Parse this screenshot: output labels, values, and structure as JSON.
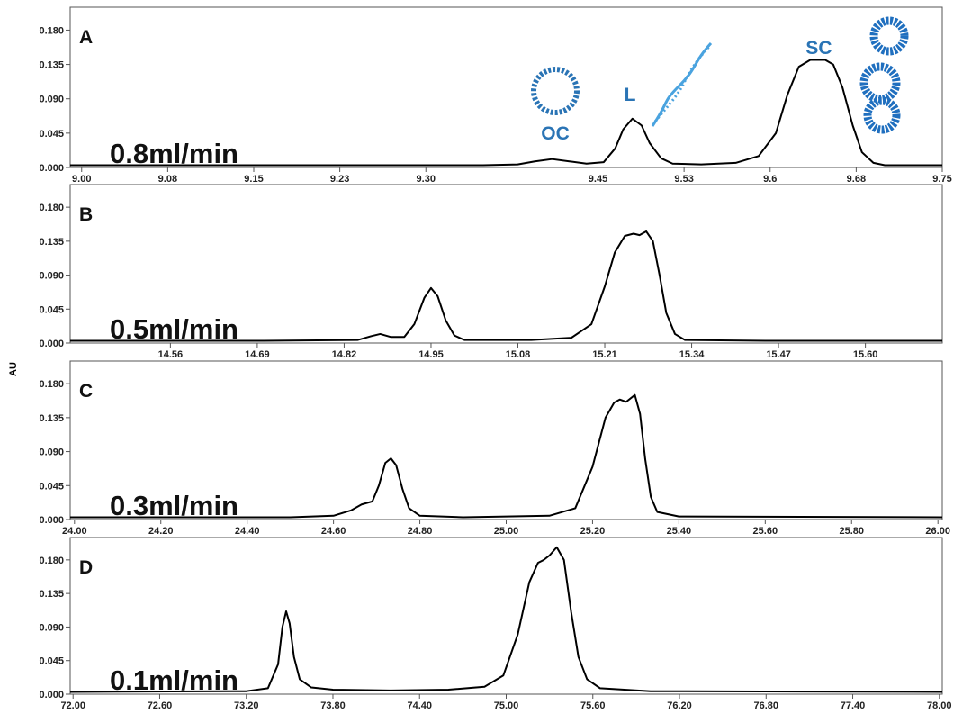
{
  "shared_ylabel": "AU",
  "chart_data": [
    {
      "type": "line",
      "panel_label": "A",
      "flow_label": "0.8ml/min",
      "annotations": [
        "OC",
        "L",
        "SC"
      ],
      "color": "#000000",
      "xlim": [
        8.99,
        9.75
      ],
      "ylim": [
        0,
        0.21
      ],
      "xticks": [
        {
          "value": 9,
          "label": "9.00"
        },
        {
          "value": 9.075,
          "label": "9.08"
        },
        9.15,
        {
          "value": 9.225,
          "label": "9.23"
        },
        {
          "value": 9.3,
          "label": "9.30"
        },
        9.45,
        {
          "value": 9.525,
          "label": "9.53"
        },
        9.6,
        {
          "value": 9.675,
          "label": "9.68"
        },
        9.75
      ],
      "yticks": [
        {
          "value": 0,
          "label": "0.000"
        },
        0.045,
        {
          "value": 0.09,
          "label": "0.090"
        },
        0.135,
        {
          "value": 0.18,
          "label": "0.180"
        }
      ],
      "x": [
        8.99,
        9.2,
        9.35,
        9.38,
        9.395,
        9.41,
        9.425,
        9.44,
        9.455,
        9.465,
        9.472,
        9.48,
        9.488,
        9.495,
        9.505,
        9.515,
        9.54,
        9.57,
        9.59,
        9.605,
        9.615,
        9.625,
        9.635,
        9.648,
        9.655,
        9.663,
        9.672,
        9.68,
        9.69,
        9.7,
        9.75
      ],
      "values": [
        0.003,
        0.003,
        0.003,
        0.004,
        0.008,
        0.011,
        0.008,
        0.005,
        0.007,
        0.025,
        0.05,
        0.064,
        0.055,
        0.032,
        0.012,
        0.005,
        0.004,
        0.006,
        0.015,
        0.045,
        0.095,
        0.132,
        0.141,
        0.141,
        0.135,
        0.105,
        0.055,
        0.02,
        0.006,
        0.003,
        0.003
      ]
    },
    {
      "type": "line",
      "panel_label": "B",
      "flow_label": "0.5ml/min",
      "color": "#000000",
      "xlim": [
        14.41,
        15.715
      ],
      "ylim": [
        0,
        0.21
      ],
      "xticks": [
        14.56,
        14.69,
        14.82,
        14.95,
        15.08,
        15.21,
        15.34,
        15.47,
        {
          "value": 15.6,
          "label": "15.60"
        }
      ],
      "yticks": [
        {
          "value": 0,
          "label": "0.000"
        },
        0.045,
        {
          "value": 0.09,
          "label": "0.090"
        },
        0.135,
        {
          "value": 0.18,
          "label": "0.180"
        }
      ],
      "x": [
        14.41,
        14.7,
        14.84,
        14.86,
        14.874,
        14.89,
        14.91,
        14.925,
        14.94,
        14.95,
        14.96,
        14.972,
        14.985,
        15.0,
        15.1,
        15.16,
        15.19,
        15.21,
        15.225,
        15.24,
        15.253,
        15.262,
        15.272,
        15.282,
        15.292,
        15.302,
        15.315,
        15.33,
        15.45,
        15.715
      ],
      "values": [
        0.003,
        0.003,
        0.004,
        0.009,
        0.012,
        0.008,
        0.008,
        0.025,
        0.06,
        0.073,
        0.062,
        0.03,
        0.01,
        0.004,
        0.004,
        0.007,
        0.025,
        0.075,
        0.12,
        0.142,
        0.145,
        0.143,
        0.148,
        0.135,
        0.09,
        0.04,
        0.012,
        0.004,
        0.003,
        0.003
      ]
    },
    {
      "type": "line",
      "panel_label": "C",
      "flow_label": "0.3ml/min",
      "color": "#000000",
      "xlim": [
        23.99,
        26.01
      ],
      "ylim": [
        0,
        0.21
      ],
      "xticks": [
        {
          "value": 24,
          "label": "24.00"
        },
        {
          "value": 24.2,
          "label": "24.20"
        },
        {
          "value": 24.4,
          "label": "24.40"
        },
        {
          "value": 24.6,
          "label": "24.60"
        },
        {
          "value": 24.8,
          "label": "24.80"
        },
        {
          "value": 25,
          "label": "25.00"
        },
        {
          "value": 25.2,
          "label": "25.20"
        },
        {
          "value": 25.4,
          "label": "25.40"
        },
        {
          "value": 25.6,
          "label": "25.60"
        },
        {
          "value": 25.8,
          "label": "25.80"
        },
        {
          "value": 26,
          "label": "26.00"
        }
      ],
      "yticks": [
        {
          "value": 0,
          "label": "0.000"
        },
        0.045,
        {
          "value": 0.09,
          "label": "0.090"
        },
        0.135,
        {
          "value": 0.18,
          "label": "0.180"
        }
      ],
      "x": [
        23.99,
        24.5,
        24.6,
        24.64,
        24.665,
        24.69,
        24.705,
        24.72,
        24.733,
        24.745,
        24.76,
        24.775,
        24.8,
        24.9,
        25.1,
        25.16,
        25.2,
        25.23,
        25.25,
        25.263,
        25.278,
        25.298,
        25.31,
        25.322,
        25.335,
        25.35,
        25.4,
        26.01
      ],
      "values": [
        0.003,
        0.003,
        0.005,
        0.012,
        0.02,
        0.024,
        0.045,
        0.075,
        0.081,
        0.072,
        0.04,
        0.015,
        0.005,
        0.003,
        0.005,
        0.015,
        0.07,
        0.135,
        0.155,
        0.159,
        0.156,
        0.165,
        0.14,
        0.08,
        0.03,
        0.01,
        0.004,
        0.003
      ]
    },
    {
      "type": "line",
      "panel_label": "D",
      "flow_label": "0.1ml/min",
      "color": "#000000",
      "xlim": [
        71.98,
        78.02
      ],
      "ylim": [
        0,
        0.21
      ],
      "xticks": [
        {
          "value": 72,
          "label": "72.00"
        },
        {
          "value": 72.6,
          "label": "72.60"
        },
        {
          "value": 73.2,
          "label": "73.20"
        },
        {
          "value": 73.8,
          "label": "73.80"
        },
        {
          "value": 74.4,
          "label": "74.40"
        },
        {
          "value": 75,
          "label": "75.00"
        },
        {
          "value": 75.6,
          "label": "75.60"
        },
        {
          "value": 76.2,
          "label": "76.20"
        },
        {
          "value": 76.8,
          "label": "76.80"
        },
        {
          "value": 77.4,
          "label": "77.40"
        },
        {
          "value": 78,
          "label": "78.00"
        }
      ],
      "yticks": [
        {
          "value": 0,
          "label": "0.000"
        },
        0.045,
        {
          "value": 0.09,
          "label": "0.090"
        },
        0.135,
        {
          "value": 0.18,
          "label": "0.180"
        }
      ],
      "x": [
        71.98,
        73.2,
        73.35,
        73.42,
        73.45,
        73.476,
        73.5,
        73.53,
        73.57,
        73.65,
        73.8,
        74.2,
        74.6,
        74.85,
        74.98,
        75.08,
        75.16,
        75.22,
        75.26,
        75.3,
        75.35,
        75.4,
        75.45,
        75.5,
        75.56,
        75.65,
        76.0,
        78.02
      ],
      "values": [
        0.003,
        0.004,
        0.008,
        0.04,
        0.09,
        0.111,
        0.095,
        0.05,
        0.02,
        0.009,
        0.006,
        0.005,
        0.006,
        0.01,
        0.025,
        0.08,
        0.15,
        0.176,
        0.18,
        0.186,
        0.197,
        0.18,
        0.11,
        0.05,
        0.02,
        0.008,
        0.004,
        0.003
      ]
    }
  ]
}
